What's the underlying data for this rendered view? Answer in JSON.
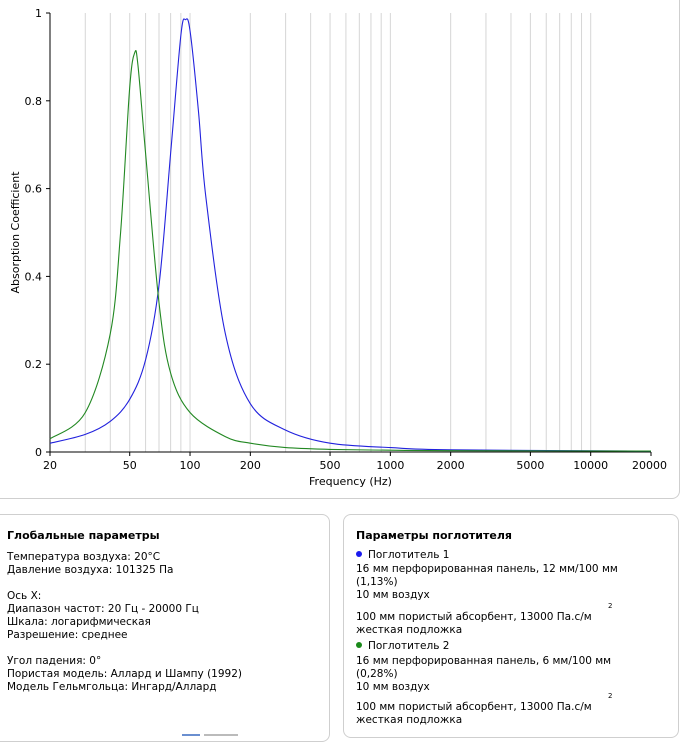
{
  "chart_data": {
    "type": "line",
    "xscale": "log",
    "xlim": [
      20,
      20000
    ],
    "ylim": [
      0,
      1
    ],
    "xlabel": "Frequency (Hz)",
    "ylabel": "Absorption Coefficient",
    "xticks": [
      "20",
      "50",
      "100",
      "200",
      "500",
      "1000",
      "2000",
      "5000",
      "10000",
      "20000"
    ],
    "yticks": [
      "0",
      "0.2",
      "0.4",
      "0.6",
      "0.8",
      "1"
    ],
    "grid": "vertical",
    "series": [
      {
        "name": "Поглотитель 1",
        "color": "#2222dd",
        "x": [
          20,
          30,
          40,
          50,
          60,
          70,
          80,
          90,
          95,
          100,
          110,
          120,
          150,
          200,
          300,
          500,
          1000,
          2000,
          20000
        ],
        "y": [
          0.02,
          0.04,
          0.07,
          0.12,
          0.21,
          0.38,
          0.68,
          0.95,
          0.985,
          0.96,
          0.78,
          0.58,
          0.27,
          0.11,
          0.05,
          0.02,
          0.01,
          0.005,
          0.002
        ]
      },
      {
        "name": "Поглотитель 2",
        "color": "#228822",
        "x": [
          20,
          30,
          40,
          45,
          50,
          53,
          55,
          60,
          70,
          80,
          100,
          150,
          200,
          300,
          500,
          1000,
          2000,
          20000
        ],
        "y": [
          0.03,
          0.09,
          0.27,
          0.5,
          0.83,
          0.91,
          0.88,
          0.68,
          0.34,
          0.18,
          0.09,
          0.035,
          0.02,
          0.01,
          0.006,
          0.004,
          0.003,
          0.002
        ]
      }
    ]
  },
  "global": {
    "title": "Глобальные параметры",
    "air_temp": "Температура воздуха: 20°C",
    "air_pressure": "Давление воздуха: 101325 Па",
    "x_axis": "Ось X:",
    "freq_range": "Диапазон частот: 20 Гц - 20000 Гц",
    "scale": "Шкала: логарифмическая",
    "resolution": "Разрешение: среднее",
    "incidence": "Угол падения: 0°",
    "porous_model": "Пористая модель: Аллард и Шампу (1992)",
    "helmholtz_model": "Модель Гельмгольца: Ингард/Аллард"
  },
  "absorbers": {
    "title": "Параметры поглотителя",
    "a1": {
      "name": "Поглотитель 1",
      "color": "#1a1aee",
      "line1": "16 мм перфорированная панель, 12 мм/100 мм",
      "line2": "(1,13%)",
      "line3": "10 мм воздух",
      "line4": "100 мм пористый абсорбент, 13000 Па.с/м",
      "sup": "2",
      "line5": "жесткая подложка"
    },
    "a2": {
      "name": "Поглотитель 2",
      "color": "#1a8a1a",
      "line1": "16 мм перфорированная панель, 6 мм/100 мм",
      "line2": "(0,28%)",
      "line3": "10 мм воздух",
      "line4": "100 мм пористый абсорбент, 13000 Па.с/м",
      "sup": "2",
      "line5": "жесткая подложка"
    }
  }
}
